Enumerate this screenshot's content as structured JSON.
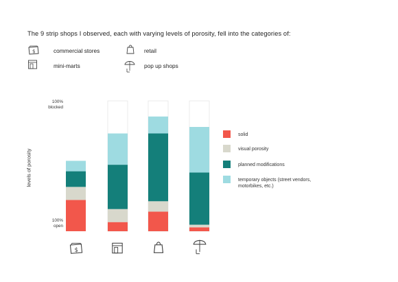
{
  "intro": "The 9 strip shops I observed, each with varying levels of porosity,  fell into the categories of:",
  "categories": [
    {
      "icon": "commercial-store-icon",
      "label": "commercial stores"
    },
    {
      "icon": "retail-bag-icon",
      "label": "retail"
    },
    {
      "icon": "mini-mart-icon",
      "label": "mini-marts"
    },
    {
      "icon": "umbrella-icon",
      "label": "pop up shops"
    }
  ],
  "chart_data": {
    "type": "bar",
    "stacked": true,
    "ylabel": "levels of porosity",
    "ylim": [
      0,
      100
    ],
    "y_top_label": "100%\nblocked",
    "y_bottom_label": "100%\nopen",
    "categories": [
      "commercial-store-icon",
      "mini-mart-icon",
      "retail-bag-icon",
      "umbrella-icon"
    ],
    "series": [
      {
        "name": "solid",
        "color": "#f2574b",
        "values": [
          24,
          7,
          15,
          3
        ]
      },
      {
        "name": "visual porosity",
        "color": "#d8d8cc",
        "values": [
          10,
          10,
          8,
          2
        ]
      },
      {
        "name": "planned modifications",
        "color": "#147f7a",
        "values": [
          12,
          34,
          52,
          40
        ]
      },
      {
        "name": "temporary objects (street vendors, motorbikes, etc.)",
        "color": "#9edbe1",
        "values": [
          8,
          24,
          13,
          35
        ]
      }
    ],
    "legend_position": "right",
    "grid": false
  }
}
